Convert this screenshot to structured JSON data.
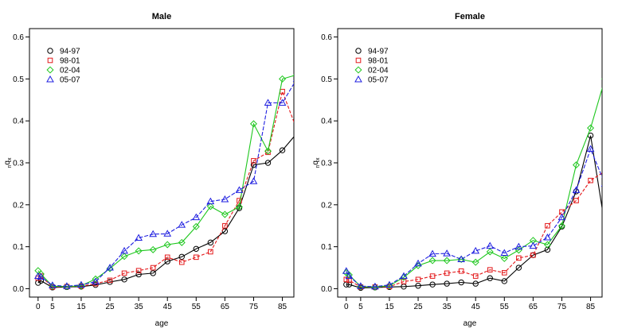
{
  "chart_data": [
    {
      "type": "line",
      "title": "Male",
      "xlabel": "age",
      "ylabel": "nqx",
      "xlim": [
        -3,
        89
      ],
      "ylim": [
        -0.02,
        0.62
      ],
      "xticks": [
        0,
        5,
        15,
        25,
        35,
        45,
        55,
        65,
        75,
        85
      ],
      "yticks": [
        0.0,
        0.1,
        0.2,
        0.3,
        0.4,
        0.5,
        0.6
      ],
      "legend": "top-left",
      "x": [
        0,
        1,
        5,
        10,
        15,
        20,
        25,
        30,
        35,
        40,
        45,
        50,
        55,
        60,
        65,
        70,
        75,
        80,
        85,
        90
      ],
      "series": [
        {
          "name": "94-97",
          "color": "#000000",
          "marker": "circle",
          "values": [
            0.014,
            0.019,
            0.003,
            0.004,
            0.005,
            0.009,
            0.016,
            0.022,
            0.034,
            0.037,
            0.065,
            0.076,
            0.095,
            0.11,
            0.137,
            0.192,
            0.295,
            0.3,
            0.33,
            0.37
          ]
        },
        {
          "name": "98-01",
          "color": "#e31a1c",
          "marker": "square",
          "values": [
            0.025,
            0.03,
            0.004,
            0.005,
            0.006,
            0.012,
            0.02,
            0.037,
            0.043,
            0.05,
            0.075,
            0.063,
            0.075,
            0.088,
            0.15,
            0.21,
            0.305,
            0.325,
            0.47,
            0.38
          ]
        },
        {
          "name": "02-04",
          "color": "#1ec71e",
          "marker": "diamond",
          "values": [
            0.043,
            0.035,
            0.006,
            0.005,
            0.007,
            0.023,
            0.048,
            0.077,
            0.09,
            0.093,
            0.105,
            0.11,
            0.148,
            0.196,
            0.177,
            0.195,
            0.393,
            0.328,
            0.5,
            0.51
          ]
        },
        {
          "name": "05-07",
          "color": "#1f1fe0",
          "marker": "triangle",
          "values": [
            0.03,
            0.028,
            0.008,
            0.006,
            0.009,
            0.017,
            0.05,
            0.09,
            0.121,
            0.13,
            0.131,
            0.152,
            0.17,
            0.208,
            0.213,
            0.235,
            0.256,
            0.443,
            0.443,
            0.5
          ]
        }
      ]
    },
    {
      "type": "line",
      "title": "Female",
      "xlabel": "age",
      "ylabel": "nqx",
      "xlim": [
        -3,
        89
      ],
      "ylim": [
        -0.02,
        0.62
      ],
      "xticks": [
        0,
        5,
        15,
        25,
        35,
        45,
        55,
        65,
        75,
        85
      ],
      "yticks": [
        0.0,
        0.1,
        0.2,
        0.3,
        0.4,
        0.5,
        0.6
      ],
      "legend": "top-left",
      "x": [
        0,
        1,
        5,
        10,
        15,
        20,
        25,
        30,
        35,
        40,
        45,
        50,
        55,
        60,
        65,
        70,
        75,
        80,
        85,
        90
      ],
      "series": [
        {
          "name": "94-97",
          "color": "#000000",
          "marker": "circle",
          "values": [
            0.01,
            0.01,
            0.002,
            0.003,
            0.004,
            0.005,
            0.007,
            0.01,
            0.012,
            0.015,
            0.012,
            0.025,
            0.018,
            0.05,
            0.08,
            0.093,
            0.148,
            0.232,
            0.365,
            0.15
          ]
        },
        {
          "name": "98-01",
          "color": "#e31a1c",
          "marker": "square",
          "values": [
            0.022,
            0.02,
            0.004,
            0.004,
            0.005,
            0.017,
            0.022,
            0.03,
            0.037,
            0.042,
            0.03,
            0.045,
            0.038,
            0.073,
            0.08,
            0.15,
            0.183,
            0.21,
            0.258,
            0.28
          ]
        },
        {
          "name": "02-04",
          "color": "#1ec71e",
          "marker": "diamond",
          "values": [
            0.038,
            0.033,
            0.005,
            0.004,
            0.007,
            0.027,
            0.055,
            0.067,
            0.067,
            0.07,
            0.063,
            0.088,
            0.072,
            0.092,
            0.115,
            0.105,
            0.15,
            0.295,
            0.383,
            0.5
          ]
        },
        {
          "name": "05-07",
          "color": "#1f1fe0",
          "marker": "triangle",
          "values": [
            0.042,
            0.03,
            0.006,
            0.005,
            0.009,
            0.03,
            0.06,
            0.083,
            0.084,
            0.07,
            0.09,
            0.102,
            0.085,
            0.1,
            0.102,
            0.122,
            0.17,
            0.235,
            0.333,
            0.25
          ]
        }
      ]
    }
  ]
}
